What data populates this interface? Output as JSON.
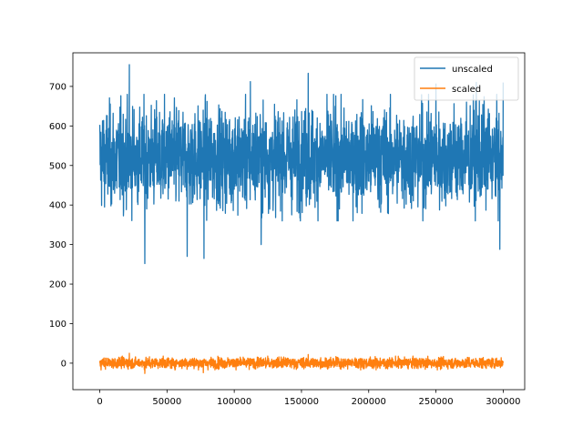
{
  "chart_data": {
    "type": "line",
    "title": "",
    "xlabel": "",
    "ylabel": "",
    "xlim": [
      -20000,
      316000
    ],
    "ylim": [
      -67,
      785
    ],
    "x_ticks": [
      0,
      50000,
      100000,
      150000,
      200000,
      250000,
      300000
    ],
    "x_tick_labels": [
      "0",
      "50000",
      "100000",
      "150000",
      "200000",
      "250000",
      "300000"
    ],
    "y_ticks": [
      0,
      100,
      200,
      300,
      400,
      500,
      600,
      700
    ],
    "y_tick_labels": [
      "0",
      "100",
      "200",
      "300",
      "400",
      "500",
      "600",
      "700"
    ],
    "grid": false,
    "legend_position": "top-right",
    "series": [
      {
        "name": "unscaled",
        "color": "#1f77b4",
        "x_range": [
          0,
          300000
        ],
        "band": {
          "typical_min": 360,
          "typical_max": 680
        },
        "spikes": [
          {
            "x": 22000,
            "y": 755
          },
          {
            "x": 33500,
            "y": 252
          },
          {
            "x": 65000,
            "y": 270
          },
          {
            "x": 77500,
            "y": 265
          },
          {
            "x": 155000,
            "y": 733
          },
          {
            "x": 120000,
            "y": 300
          },
          {
            "x": 297500,
            "y": 288
          },
          {
            "x": 280000,
            "y": 710
          },
          {
            "x": 300000,
            "y": 710
          },
          {
            "x": 112000,
            "y": 712
          },
          {
            "x": 250000,
            "y": 706
          }
        ]
      },
      {
        "name": "scaled",
        "color": "#ff7f0e",
        "x_range": [
          0,
          300000
        ],
        "band": {
          "typical_min": -17,
          "typical_max": 18
        },
        "spikes": [
          {
            "x": 33500,
            "y": -26
          },
          {
            "x": 77000,
            "y": -24
          },
          {
            "x": 22000,
            "y": 25
          },
          {
            "x": 155000,
            "y": 22
          }
        ]
      }
    ]
  }
}
